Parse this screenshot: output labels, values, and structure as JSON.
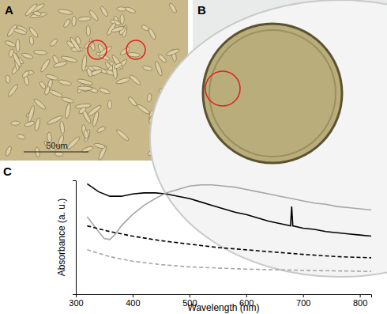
{
  "figure": {
    "panels": [
      {
        "label": "A",
        "scale_bar_label": "50um"
      },
      {
        "label": "B"
      },
      {
        "label": "C"
      }
    ]
  },
  "chart_data": {
    "type": "line",
    "x_label": "Wavelength (nm)",
    "y_label": "Absorbance (a. u.)",
    "xlim": [
      300,
      820
    ],
    "xticks": [
      300,
      400,
      500,
      600,
      700,
      800
    ],
    "ylim": [
      0,
      1
    ],
    "yticks": [],
    "tick_labels": "x",
    "grid": false,
    "series": [
      {
        "color": "#000000",
        "line_style": "solid",
        "x": [
          320,
          340,
          360,
          380,
          400,
          420,
          440,
          460,
          480,
          500,
          520,
          540,
          560,
          580,
          600,
          620,
          640,
          660,
          678,
          680,
          682,
          700,
          720,
          740,
          760,
          780,
          800,
          820
        ],
        "values": [
          0.97,
          0.9,
          0.86,
          0.86,
          0.88,
          0.89,
          0.89,
          0.88,
          0.86,
          0.84,
          0.81,
          0.78,
          0.75,
          0.72,
          0.7,
          0.67,
          0.64,
          0.62,
          0.6,
          0.77,
          0.6,
          0.58,
          0.57,
          0.55,
          0.54,
          0.53,
          0.52,
          0.51
        ]
      },
      {
        "color": "#a6a6a6",
        "line_style": "solid",
        "x": [
          320,
          340,
          350,
          360,
          370,
          380,
          400,
          420,
          440,
          460,
          480,
          500,
          520,
          540,
          560,
          580,
          600,
          620,
          640,
          660,
          680,
          700,
          720,
          740,
          760,
          780,
          800,
          820
        ],
        "values": [
          0.68,
          0.55,
          0.49,
          0.48,
          0.53,
          0.6,
          0.7,
          0.78,
          0.84,
          0.89,
          0.92,
          0.95,
          0.96,
          0.96,
          0.95,
          0.94,
          0.92,
          0.9,
          0.88,
          0.86,
          0.84,
          0.82,
          0.8,
          0.79,
          0.77,
          0.76,
          0.75,
          0.74
        ]
      },
      {
        "color": "#000000",
        "line_style": "dashed",
        "x": [
          320,
          360,
          400,
          450,
          500,
          550,
          600,
          650,
          700,
          760,
          820
        ],
        "values": [
          0.6,
          0.55,
          0.51,
          0.47,
          0.44,
          0.41,
          0.39,
          0.37,
          0.35,
          0.33,
          0.32
        ]
      },
      {
        "color": "#a6a6a6",
        "line_style": "dashed",
        "x": [
          320,
          360,
          400,
          450,
          500,
          550,
          600,
          700,
          820
        ],
        "values": [
          0.39,
          0.33,
          0.29,
          0.26,
          0.24,
          0.23,
          0.22,
          0.21,
          0.2
        ]
      }
    ]
  }
}
